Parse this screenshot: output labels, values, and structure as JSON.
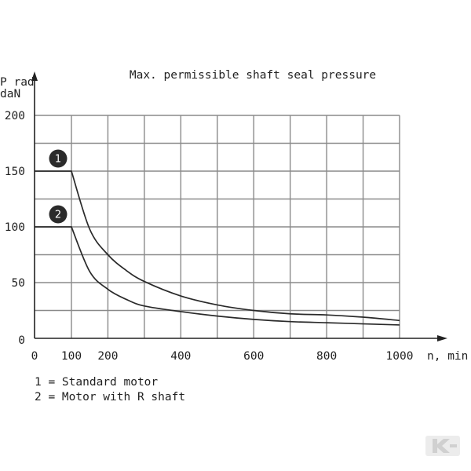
{
  "chart_data": {
    "type": "line",
    "title": "Max. permissible shaft seal pressure",
    "ylabel_line1": "P rad",
    "ylabel_line2": "daN",
    "xlabel": "n, min",
    "xlim": [
      0,
      1000
    ],
    "ylim": [
      0,
      200
    ],
    "grid": true,
    "x_ticks": [
      0,
      100,
      200,
      400,
      600,
      800,
      1000
    ],
    "x_tick_labels": [
      "0",
      "100",
      "200",
      "400",
      "600",
      "800",
      "1000"
    ],
    "x_grid": [
      100,
      200,
      300,
      400,
      500,
      600,
      700,
      800,
      900,
      1000
    ],
    "y_ticks": [
      0,
      50,
      100,
      150,
      200
    ],
    "y_tick_labels": [
      "0",
      "50",
      "100",
      "150",
      "200"
    ],
    "y_grid": [
      25,
      50,
      75,
      100,
      125,
      150,
      175,
      200
    ],
    "series": [
      {
        "name": "1",
        "x": [
          0,
          100,
          150,
          200,
          250,
          300,
          400,
          500,
          600,
          700,
          800,
          900,
          1000
        ],
        "y": [
          150,
          150,
          98,
          75,
          61,
          51,
          38,
          30,
          25,
          22,
          21,
          19,
          16
        ]
      },
      {
        "name": "2",
        "x": [
          0,
          100,
          150,
          200,
          250,
          300,
          400,
          500,
          600,
          700,
          800,
          900,
          1000
        ],
        "y": [
          100,
          100,
          60,
          44,
          35,
          29,
          24,
          20,
          17,
          15,
          14,
          13,
          12
        ]
      }
    ]
  },
  "legend": {
    "line1": "1 = Standard motor",
    "line2": "2 = Motor with R shaft"
  },
  "colors": {
    "curve": "#2a2a2a",
    "grid": "#8a8a8a",
    "badge": "#2b2b2b",
    "logo": "#d9d9d9"
  },
  "logo_icon": "k-brand-logo"
}
